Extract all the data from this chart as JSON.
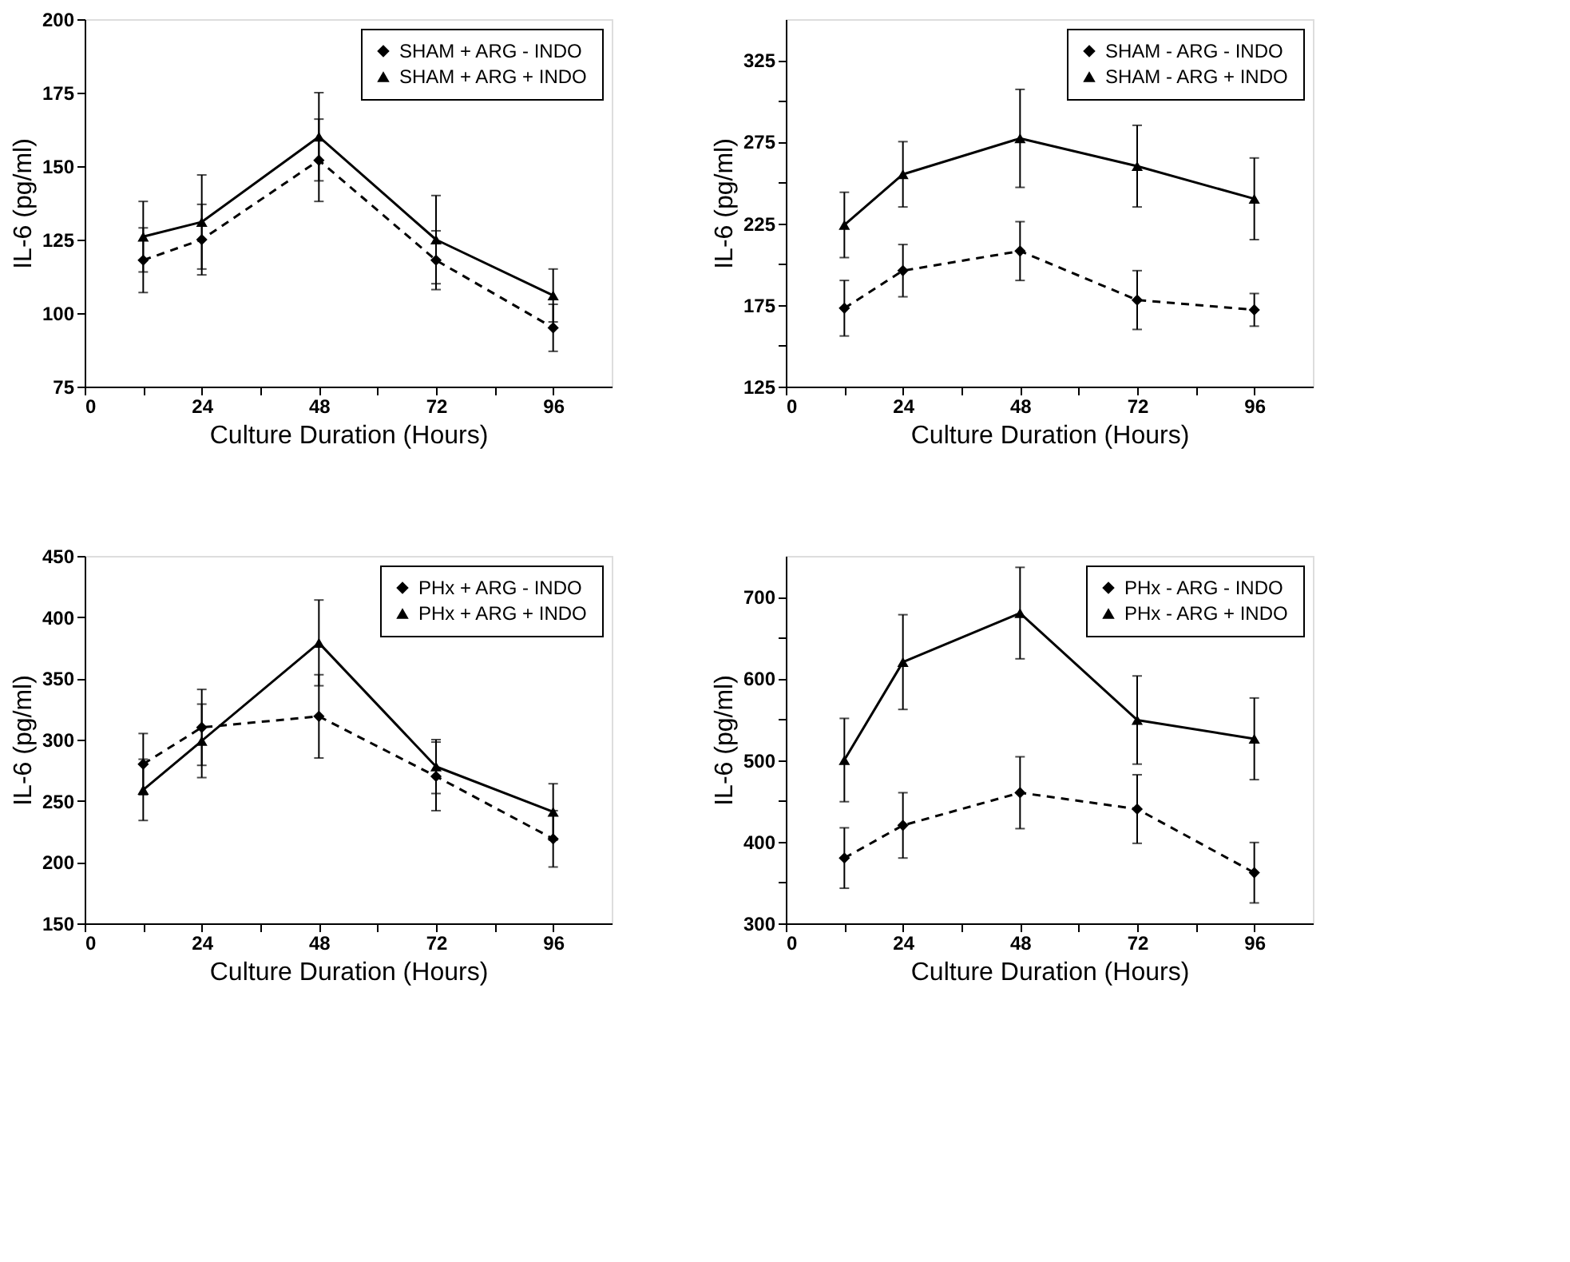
{
  "chart_data": [
    {
      "type": "line",
      "xlabel": "Culture Duration (Hours)",
      "ylabel": "IL-6 (pg/ml)",
      "x": [
        12,
        24,
        48,
        72,
        96
      ],
      "xlim": [
        0,
        108
      ],
      "xticks": [
        0,
        {
          "value": 12,
          "label": null
        },
        24,
        {
          "value": 36,
          "label": null
        },
        48,
        {
          "value": 60,
          "label": null
        },
        72,
        {
          "value": 84,
          "label": null
        },
        96
      ],
      "ylim": [
        75,
        200
      ],
      "yticks": [
        75,
        100,
        125,
        150,
        175,
        200
      ],
      "grid": false,
      "legend": "top right",
      "series": [
        {
          "name": "SHAM + ARG - INDO",
          "color": "#000000",
          "line_style": "dashed",
          "marker": "diamond",
          "values": [
            118,
            125,
            152,
            118,
            95
          ],
          "errors": [
            11,
            12,
            14,
            10,
            8
          ]
        },
        {
          "name": "SHAM + ARG + INDO",
          "color": "#000000",
          "line_style": "solid",
          "marker": "triangle",
          "values": [
            126,
            131,
            160,
            125,
            106
          ],
          "errors": [
            12,
            16,
            15,
            15,
            9
          ]
        }
      ]
    },
    {
      "type": "line",
      "xlabel": "Culture Duration (Hours)",
      "ylabel": "IL-6 (pg/ml)",
      "x": [
        12,
        24,
        48,
        72,
        96
      ],
      "xlim": [
        0,
        108
      ],
      "xticks": [
        0,
        {
          "value": 12,
          "label": null
        },
        24,
        {
          "value": 36,
          "label": null
        },
        48,
        {
          "value": 60,
          "label": null
        },
        72,
        {
          "value": 84,
          "label": null
        },
        96
      ],
      "ylim": [
        125,
        350
      ],
      "yticks": [
        125,
        {
          "value": 150,
          "label": null
        },
        175,
        {
          "value": 200,
          "label": null
        },
        225,
        {
          "value": 250,
          "label": null
        },
        275,
        {
          "value": 300,
          "label": null
        },
        325
      ],
      "grid": false,
      "legend": "top right",
      "series": [
        {
          "name": "SHAM - ARG - INDO",
          "color": "#000000",
          "line_style": "dashed",
          "marker": "diamond",
          "values": [
            173,
            196,
            208,
            178,
            172
          ],
          "errors": [
            17,
            16,
            18,
            18,
            10
          ]
        },
        {
          "name": "SHAM - ARG + INDO",
          "color": "#000000",
          "line_style": "solid",
          "marker": "triangle",
          "values": [
            224,
            255,
            277,
            260,
            240
          ],
          "errors": [
            20,
            20,
            30,
            25,
            25
          ]
        }
      ]
    },
    {
      "type": "line",
      "xlabel": "Culture Duration (Hours)",
      "ylabel": "IL-6 (pg/ml)",
      "x": [
        12,
        24,
        48,
        72,
        96
      ],
      "xlim": [
        0,
        108
      ],
      "xticks": [
        0,
        {
          "value": 12,
          "label": null
        },
        24,
        {
          "value": 36,
          "label": null
        },
        48,
        {
          "value": 60,
          "label": null
        },
        72,
        {
          "value": 84,
          "label": null
        },
        96
      ],
      "ylim": [
        150,
        450
      ],
      "yticks": [
        150,
        200,
        250,
        300,
        350,
        400,
        450
      ],
      "grid": false,
      "legend": "top right",
      "series": [
        {
          "name": "PHx + ARG - INDO",
          "color": "#000000",
          "line_style": "dashed",
          "marker": "diamond",
          "values": [
            280,
            310,
            319,
            270,
            219
          ],
          "errors": [
            25,
            31,
            34,
            28,
            23
          ]
        },
        {
          "name": "PHx + ARG + INDO",
          "color": "#000000",
          "line_style": "solid",
          "marker": "triangle",
          "values": [
            259,
            299,
            379,
            278,
            241
          ],
          "errors": [
            25,
            30,
            35,
            22,
            23
          ]
        }
      ]
    },
    {
      "type": "line",
      "xlabel": "Culture Duration (Hours)",
      "ylabel": "IL-6 (pg/ml)",
      "x": [
        12,
        24,
        48,
        72,
        96
      ],
      "xlim": [
        0,
        108
      ],
      "xticks": [
        0,
        {
          "value": 12,
          "label": null
        },
        24,
        {
          "value": 36,
          "label": null
        },
        48,
        {
          "value": 60,
          "label": null
        },
        72,
        {
          "value": 84,
          "label": null
        },
        96
      ],
      "ylim": [
        300,
        750
      ],
      "yticks": [
        300,
        {
          "value": 350,
          "label": null
        },
        400,
        {
          "value": 450,
          "label": null
        },
        500,
        {
          "value": 550,
          "label": null
        },
        600,
        {
          "value": 650,
          "label": null
        },
        700
      ],
      "grid": false,
      "legend": "top right",
      "series": [
        {
          "name": "PHx - ARG - INDO",
          "color": "#000000",
          "line_style": "dashed",
          "marker": "diamond",
          "values": [
            380,
            420,
            460,
            440,
            362
          ],
          "errors": [
            37,
            40,
            44,
            42,
            37
          ]
        },
        {
          "name": "PHx - ARG + INDO",
          "color": "#000000",
          "line_style": "solid",
          "marker": "triangle",
          "values": [
            500,
            620,
            680,
            549,
            526
          ],
          "errors": [
            51,
            58,
            56,
            54,
            50
          ]
        }
      ]
    }
  ]
}
